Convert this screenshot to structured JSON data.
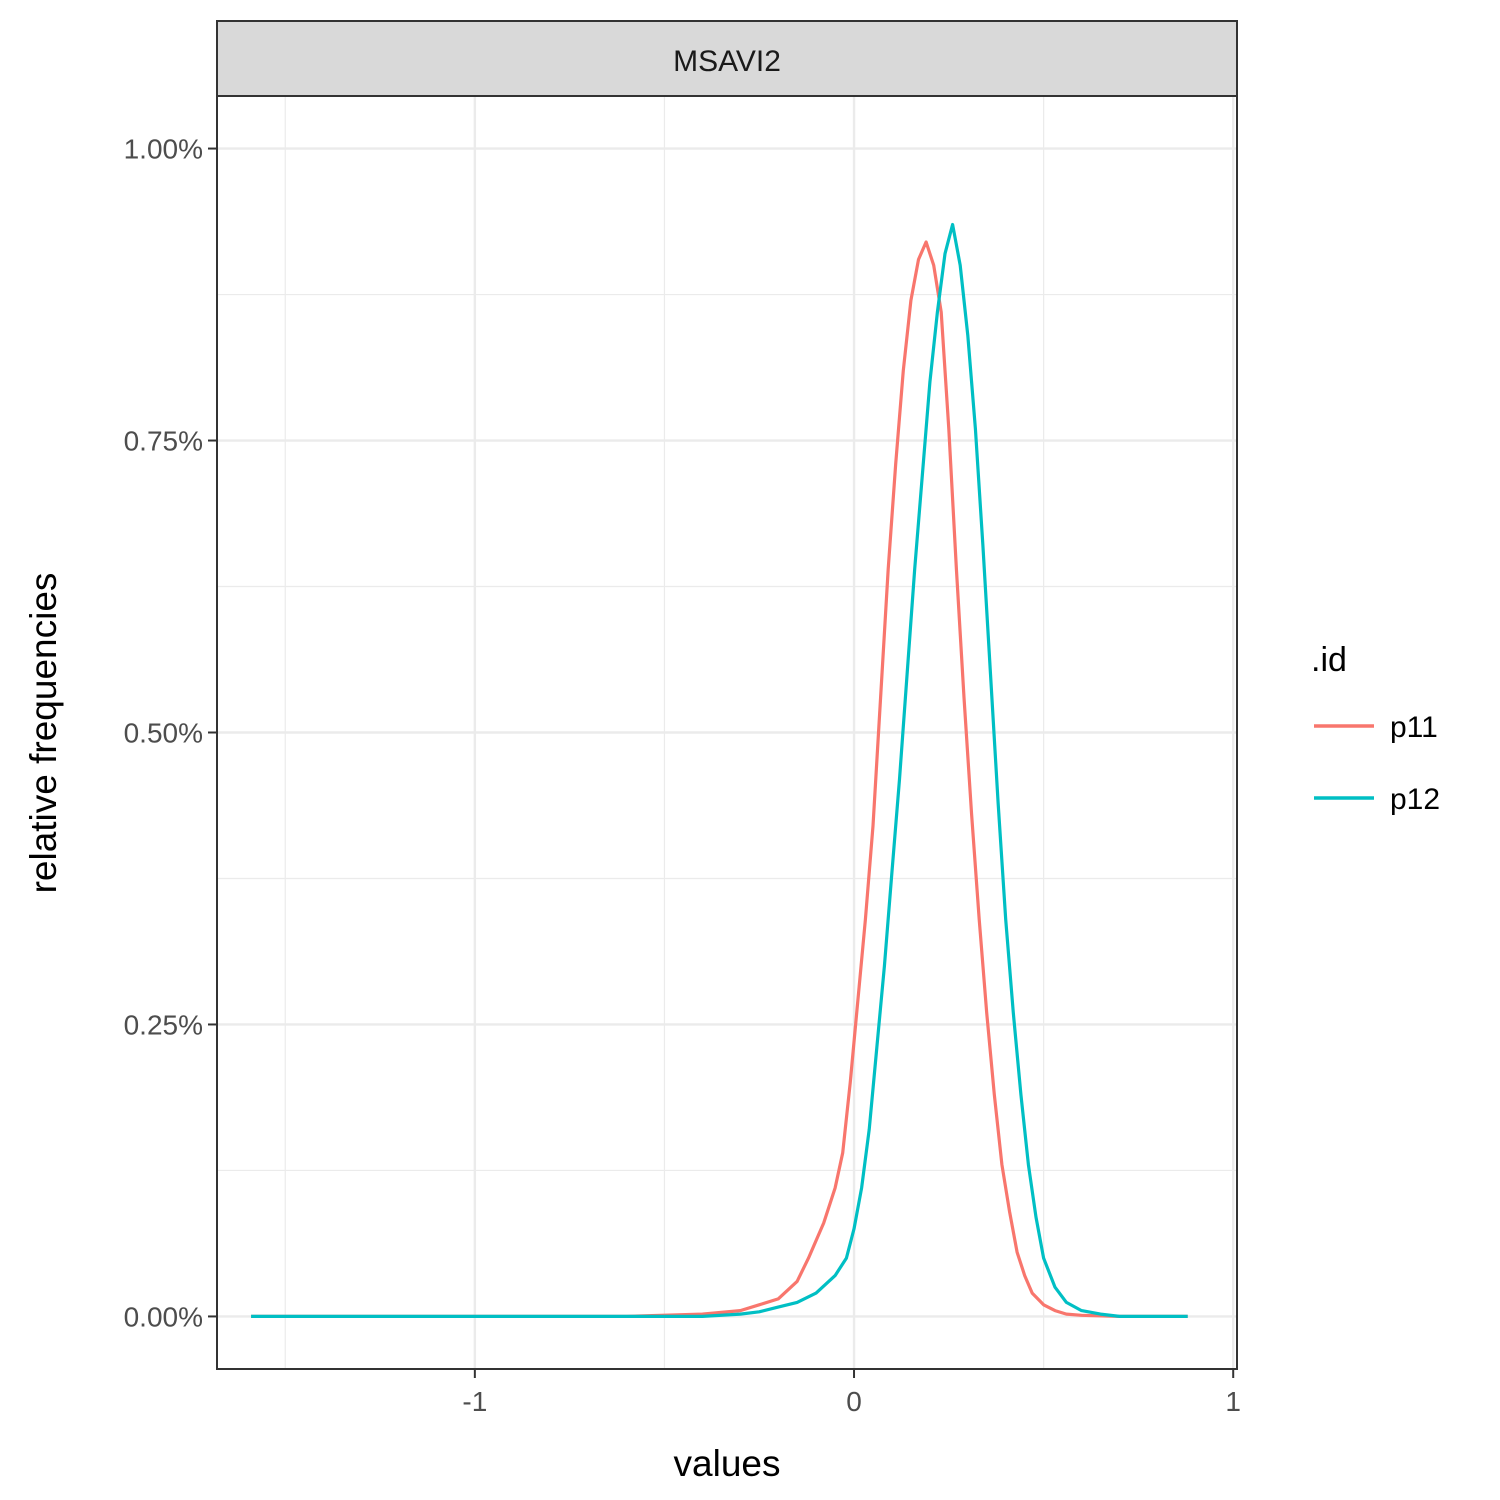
{
  "chart_data": {
    "type": "line",
    "facet_label": "MSAVI2",
    "xlabel": "values",
    "ylabel": "relative frequencies",
    "xlim": [
      -1.68,
      1.01
    ],
    "ylim": [
      -0.045,
      1.045
    ],
    "x_ticks": [
      -1,
      0,
      1
    ],
    "x_tick_labels": [
      "-1",
      "0",
      "1"
    ],
    "y_ticks": [
      0,
      0.25,
      0.5,
      0.75,
      1.0
    ],
    "y_tick_labels": [
      "0.00%",
      "0.25%",
      "0.50%",
      "0.75%",
      "1.00%"
    ],
    "grid": true,
    "legend": {
      "title": ".id",
      "position": "right",
      "entries": [
        "p11",
        "p12"
      ]
    },
    "series": [
      {
        "name": "p11",
        "color": "#F8766D",
        "x": [
          -1.59,
          -0.6,
          -0.4,
          -0.3,
          -0.25,
          -0.2,
          -0.15,
          -0.12,
          -0.1,
          -0.08,
          -0.05,
          -0.03,
          -0.01,
          0.01,
          0.03,
          0.05,
          0.07,
          0.09,
          0.11,
          0.13,
          0.15,
          0.17,
          0.19,
          0.21,
          0.23,
          0.25,
          0.27,
          0.29,
          0.31,
          0.33,
          0.35,
          0.37,
          0.39,
          0.41,
          0.43,
          0.45,
          0.47,
          0.5,
          0.53,
          0.56,
          0.6,
          0.7,
          0.88
        ],
        "y": [
          0.0,
          0.0,
          0.002,
          0.005,
          0.01,
          0.015,
          0.03,
          0.05,
          0.065,
          0.08,
          0.11,
          0.14,
          0.2,
          0.27,
          0.34,
          0.42,
          0.53,
          0.64,
          0.73,
          0.81,
          0.87,
          0.905,
          0.92,
          0.9,
          0.86,
          0.76,
          0.64,
          0.53,
          0.43,
          0.34,
          0.26,
          0.19,
          0.13,
          0.09,
          0.055,
          0.035,
          0.02,
          0.01,
          0.005,
          0.002,
          0.001,
          0.0,
          0.0
        ]
      },
      {
        "name": "p12",
        "color": "#00BFC4",
        "x": [
          -1.59,
          -0.6,
          -0.4,
          -0.3,
          -0.25,
          -0.2,
          -0.15,
          -0.1,
          -0.05,
          -0.02,
          0.0,
          0.02,
          0.04,
          0.06,
          0.08,
          0.1,
          0.12,
          0.14,
          0.16,
          0.18,
          0.2,
          0.22,
          0.24,
          0.26,
          0.28,
          0.3,
          0.32,
          0.34,
          0.36,
          0.38,
          0.4,
          0.42,
          0.44,
          0.46,
          0.48,
          0.5,
          0.53,
          0.56,
          0.6,
          0.65,
          0.7,
          0.88
        ],
        "y": [
          0.0,
          0.0,
          0.0,
          0.002,
          0.004,
          0.008,
          0.012,
          0.02,
          0.035,
          0.05,
          0.075,
          0.11,
          0.16,
          0.23,
          0.3,
          0.38,
          0.46,
          0.55,
          0.64,
          0.72,
          0.8,
          0.86,
          0.91,
          0.935,
          0.9,
          0.84,
          0.76,
          0.66,
          0.55,
          0.44,
          0.34,
          0.26,
          0.19,
          0.13,
          0.085,
          0.05,
          0.025,
          0.012,
          0.005,
          0.002,
          0.0,
          0.0
        ]
      }
    ]
  }
}
